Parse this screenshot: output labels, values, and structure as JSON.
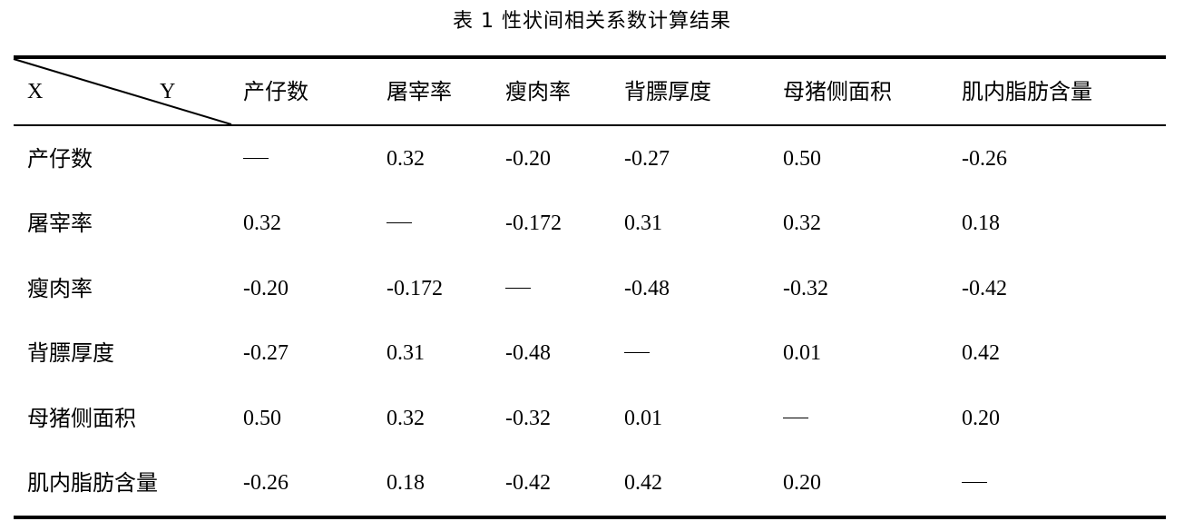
{
  "title": "表 1  性状间相关系数计算结果",
  "corner": {
    "x_label": "X",
    "y_label": "Y"
  },
  "columns": [
    "产仔数",
    "屠宰率",
    "瘦肉率",
    "背膘厚度",
    "母猪侧面积",
    "肌内脂肪含量"
  ],
  "rows": [
    {
      "label": "产仔数",
      "values": [
        "—",
        "0.32",
        "-0.20",
        "-0.27",
        "0.50",
        "-0.26"
      ]
    },
    {
      "label": "屠宰率",
      "values": [
        "0.32",
        "—",
        "-0.172",
        "0.31",
        "0.32",
        "0.18"
      ]
    },
    {
      "label": "瘦肉率",
      "values": [
        "-0.20",
        "-0.172",
        "—",
        "-0.48",
        "-0.32",
        "-0.42"
      ]
    },
    {
      "label": "背膘厚度",
      "values": [
        "-0.27",
        "0.31",
        "-0.48",
        "—",
        "0.01",
        "0.42"
      ]
    },
    {
      "label": "母猪侧面积",
      "values": [
        "0.50",
        "0.32",
        "-0.32",
        "0.01",
        "—",
        "0.20"
      ]
    },
    {
      "label": "肌内脂肪含量",
      "values": [
        "-0.26",
        "0.18",
        "-0.42",
        "0.42",
        "0.20",
        "—"
      ]
    }
  ]
}
